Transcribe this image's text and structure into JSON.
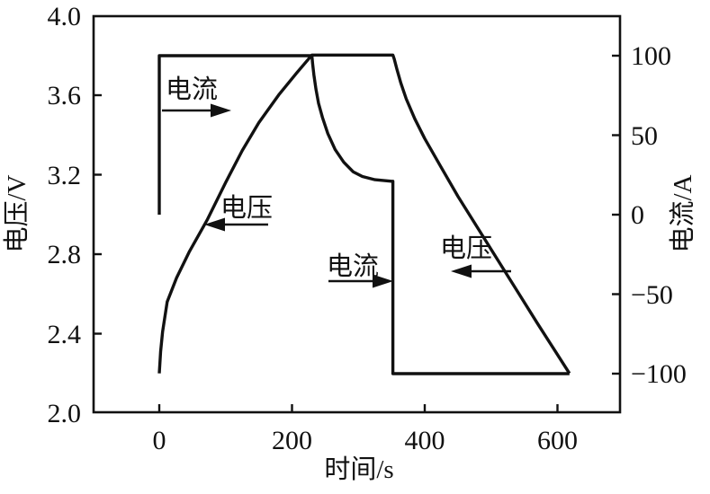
{
  "colors": {
    "line": "#111111",
    "background": "#ffffff"
  },
  "chart_data": {
    "type": "line",
    "title": "",
    "xlabel": "时间/s",
    "ylabel_left": "电压/V",
    "ylabel_right": "电流/A",
    "xlim": [
      -100,
      700
    ],
    "ylim_left": [
      2.0,
      4.0
    ],
    "ylim_right": [
      -100,
      100
    ],
    "grid": false,
    "legend_position": "none",
    "x_ticks": [
      "0",
      "200",
      "400",
      "600"
    ],
    "left_ticks": [
      "4.0",
      "3.6",
      "3.2",
      "2.8",
      "2.4",
      "2.0"
    ],
    "right_ticks": [
      "100",
      "50",
      "0",
      "−50",
      "−100"
    ],
    "series": [
      {
        "name": "电压",
        "axis": "left",
        "unit": "V",
        "points": [
          [
            0,
            2.2
          ],
          [
            2,
            2.31
          ],
          [
            5,
            2.41
          ],
          [
            12,
            2.56
          ],
          [
            26,
            2.68
          ],
          [
            45,
            2.81
          ],
          [
            72,
            2.97
          ],
          [
            100,
            3.16
          ],
          [
            125,
            3.32
          ],
          [
            150,
            3.46
          ],
          [
            180,
            3.6
          ],
          [
            207,
            3.71
          ],
          [
            230,
            3.8
          ],
          [
            352,
            3.8
          ],
          [
            354,
            3.78
          ],
          [
            358,
            3.73
          ],
          [
            364,
            3.66
          ],
          [
            372,
            3.58
          ],
          [
            385,
            3.48
          ],
          [
            400,
            3.38
          ],
          [
            424,
            3.24
          ],
          [
            450,
            3.09
          ],
          [
            480,
            2.93
          ],
          [
            510,
            2.77
          ],
          [
            540,
            2.61
          ],
          [
            570,
            2.45
          ],
          [
            595,
            2.32
          ],
          [
            618,
            2.2
          ]
        ]
      },
      {
        "name": "电流",
        "axis": "right",
        "unit": "A",
        "points": [
          [
            0,
            0
          ],
          [
            0,
            100
          ],
          [
            230,
            100
          ],
          [
            231,
            95
          ],
          [
            233,
            88
          ],
          [
            236,
            79
          ],
          [
            240,
            70
          ],
          [
            246,
            61
          ],
          [
            254,
            51
          ],
          [
            265,
            41
          ],
          [
            278,
            33
          ],
          [
            292,
            27
          ],
          [
            306,
            24
          ],
          [
            325,
            22
          ],
          [
            350,
            21
          ],
          [
            352,
            21
          ],
          [
            352,
            -100
          ],
          [
            618,
            -100
          ]
        ]
      }
    ],
    "annotations": [
      {
        "label": "电流",
        "arrow_direction": "right",
        "meaning": "current curve, read on right axis"
      },
      {
        "label": "电压",
        "arrow_direction": "left",
        "meaning": "voltage charge curve, read on left axis"
      },
      {
        "label": "电流",
        "arrow_direction": "right",
        "meaning": "current step at discharge, read on right axis"
      },
      {
        "label": "电压",
        "arrow_direction": "left",
        "meaning": "voltage discharge curve, read on left axis"
      }
    ]
  }
}
